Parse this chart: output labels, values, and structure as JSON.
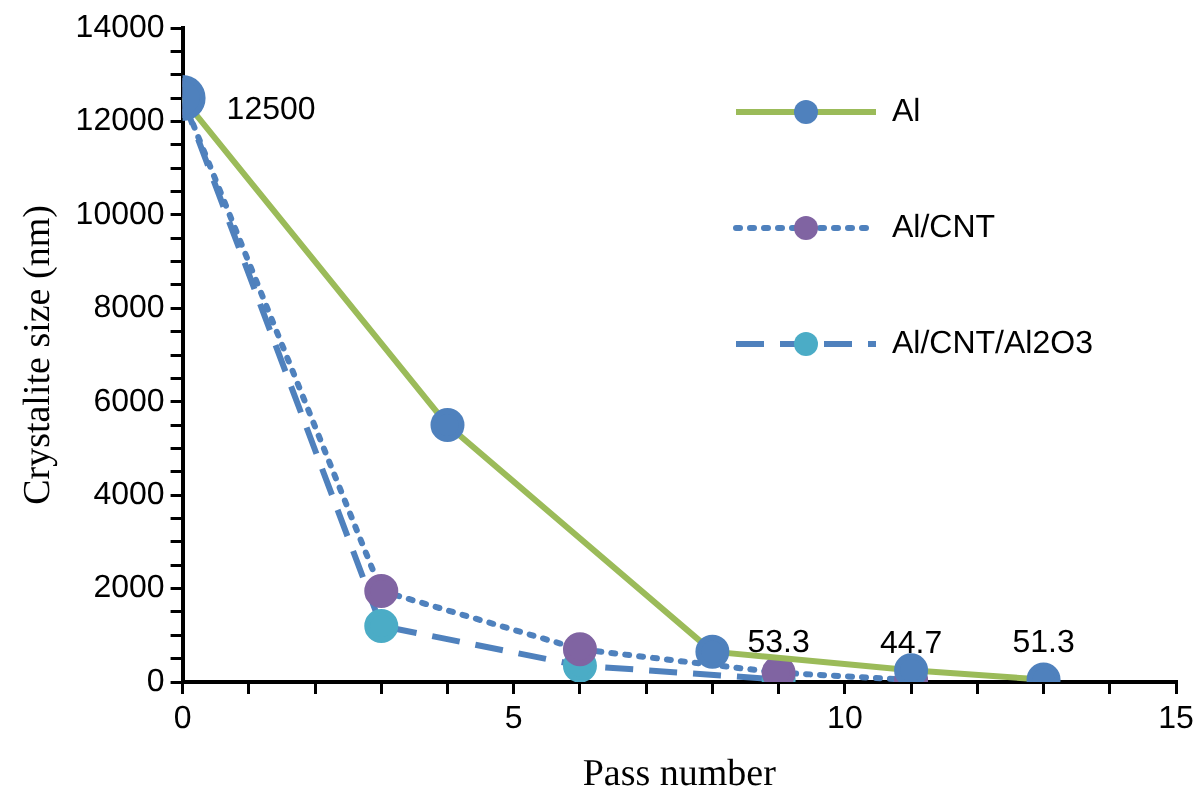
{
  "chart_data": {
    "type": "line",
    "xlabel": "Pass number",
    "ylabel": "Crystalite size (nm)",
    "xlim": [
      0,
      15
    ],
    "xticks": [
      0,
      {
        "value": 1,
        "label": null
      },
      {
        "value": 2,
        "label": null
      },
      {
        "value": 3,
        "label": null
      },
      {
        "value": 4,
        "label": null
      },
      5,
      {
        "value": 6,
        "label": null
      },
      {
        "value": 7,
        "label": null
      },
      {
        "value": 8,
        "label": null
      },
      {
        "value": 9,
        "label": null
      },
      10,
      {
        "value": 11,
        "label": null
      },
      {
        "value": 12,
        "label": null
      },
      {
        "value": 13,
        "label": null
      },
      {
        "value": 14,
        "label": null
      },
      15
    ],
    "ylim": [
      0,
      14000
    ],
    "yticks": [
      0,
      {
        "value": 500,
        "label": null
      },
      {
        "value": 1000,
        "label": null
      },
      {
        "value": 1500,
        "label": null
      },
      2000,
      {
        "value": 2500,
        "label": null
      },
      {
        "value": 3000,
        "label": null
      },
      {
        "value": 3500,
        "label": null
      },
      4000,
      {
        "value": 4500,
        "label": null
      },
      {
        "value": 5000,
        "label": null
      },
      {
        "value": 5500,
        "label": null
      },
      6000,
      {
        "value": 6500,
        "label": null
      },
      {
        "value": 7000,
        "label": null
      },
      {
        "value": 7500,
        "label": null
      },
      8000,
      {
        "value": 8500,
        "label": null
      },
      {
        "value": 9000,
        "label": null
      },
      {
        "value": 9500,
        "label": null
      },
      10000,
      {
        "value": 10500,
        "label": null
      },
      {
        "value": 11000,
        "label": null
      },
      {
        "value": 11500,
        "label": null
      },
      12000,
      {
        "value": 12500,
        "label": null
      },
      {
        "value": 13000,
        "label": null
      },
      {
        "value": 13500,
        "label": null
      },
      14000
    ],
    "grid": false,
    "legend": "right",
    "marker": "circle",
    "series": [
      {
        "name": "Al",
        "color": "#9bbb59",
        "colors": [
          "#4f81bd",
          "#4f81bd",
          "#4f81bd",
          "#4f81bd",
          "#4f81bd"
        ],
        "line_style": "solid",
        "x": [
          0,
          4,
          8,
          11,
          13
        ],
        "values": [
          12500,
          5500,
          650,
          250,
          51.3
        ],
        "value_labels": [
          "12500",
          null,
          null,
          null,
          "51.3"
        ]
      },
      {
        "name": "Al/CNT",
        "color": "#4f81bd",
        "colors": [
          "#8064a2",
          "#8064a2",
          "#8064a2",
          "#8064a2",
          "#8064a2"
        ],
        "line_style": "dotted",
        "x": [
          0,
          3,
          6,
          9,
          11
        ],
        "values": [
          12500,
          1950,
          700,
          200,
          44.7
        ],
        "value_labels": [
          null,
          null,
          null,
          null,
          "44.7"
        ]
      },
      {
        "name": "Al/CNT/Al2O3",
        "color": "#4f81bd",
        "colors": [
          "#4bacc6",
          "#4bacc6",
          "#4bacc6",
          "#4bacc6"
        ],
        "line_style": "dashed",
        "x": [
          0,
          3,
          6,
          9
        ],
        "values": [
          12500,
          1200,
          350,
          53.3
        ],
        "value_labels": [
          null,
          null,
          null,
          "53.3"
        ]
      }
    ]
  }
}
